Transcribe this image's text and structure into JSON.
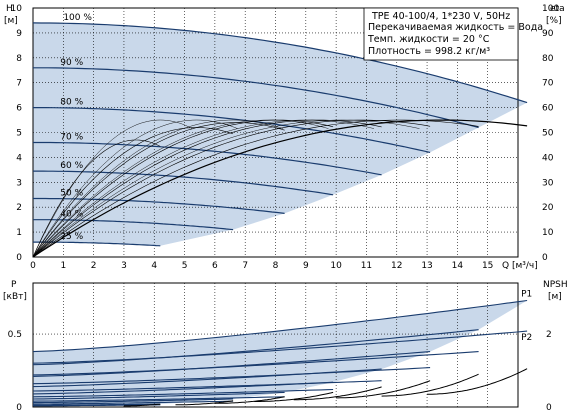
{
  "info": {
    "model": "TPE 40-100/4, 1*230 V, 50Hz",
    "line1": "Перекачиваемая жидкость = Вода",
    "line2": "Темп. жидкости = 20 °C",
    "line3": "Плотность = 998.2 кг/м³"
  },
  "colors": {
    "curve": "#1a3c6e",
    "region": "#c9d8ea",
    "grid": "#000000",
    "eta": "#000000",
    "npsh": "#000000"
  },
  "chart_data": [
    {
      "type": "line",
      "name": "head",
      "ylabel_left": "H\n[м]",
      "ylabel_right": "eta\n[%]",
      "xlabel": "Q [м³/ч]",
      "xlim": [
        0,
        16
      ],
      "ylim": [
        0,
        10
      ],
      "eta_lim": [
        0,
        100
      ],
      "x_ticks": [
        0,
        1,
        2,
        3,
        4,
        5,
        6,
        7,
        8,
        9,
        10,
        11,
        12,
        13,
        14,
        15
      ],
      "y_ticks": [
        0,
        1,
        2,
        3,
        4,
        5,
        6,
        7,
        8,
        9,
        10
      ],
      "eta_ticks": [
        0,
        10,
        20,
        30,
        40,
        50,
        60,
        70,
        80,
        90,
        100
      ],
      "speed_curves": [
        {
          "label": "100 %",
          "h0": 9.4,
          "qmax": 16.3,
          "hend": 6.2
        },
        {
          "label": "90 %",
          "h0": 7.6,
          "qmax": 14.7,
          "hend": 5.2
        },
        {
          "label": "80 %",
          "h0": 6.0,
          "qmax": 13.1,
          "hend": 4.2
        },
        {
          "label": "70 %",
          "h0": 4.6,
          "qmax": 11.5,
          "hend": 3.3
        },
        {
          "label": "60 %",
          "h0": 3.45,
          "qmax": 9.9,
          "hend": 2.5
        },
        {
          "label": "50 %",
          "h0": 2.35,
          "qmax": 8.3,
          "hend": 1.75
        },
        {
          "label": "40 %",
          "h0": 1.5,
          "qmax": 6.6,
          "hend": 1.1
        },
        {
          "label": "25 %",
          "h0": 0.6,
          "qmax": 4.2,
          "hend": 0.45
        }
      ],
      "eta_curves": [
        {
          "scale": 1.0,
          "peak": 55,
          "qpeak": 13.5,
          "qmax": 16.3
        },
        {
          "scale": 0.9,
          "peak": 55,
          "qpeak": 12.1,
          "qmax": 14.7
        },
        {
          "scale": 0.8,
          "peak": 55,
          "qpeak": 10.8,
          "qmax": 13.1
        },
        {
          "scale": 0.7,
          "peak": 55,
          "qpeak": 9.4,
          "qmax": 11.5
        },
        {
          "scale": 0.6,
          "peak": 55,
          "qpeak": 8.1,
          "qmax": 9.9
        },
        {
          "scale": 0.5,
          "peak": 54,
          "qpeak": 6.7,
          "qmax": 8.3
        },
        {
          "scale": 0.4,
          "peak": 52,
          "qpeak": 5.4,
          "qmax": 6.6
        },
        {
          "scale": 0.25,
          "peak": 47,
          "qpeak": 3.4,
          "qmax": 4.2
        }
      ]
    },
    {
      "type": "line",
      "name": "power",
      "ylabel_left": "P\n[кВт]",
      "ylabel_right": "NPSH\n[м]",
      "xlim": [
        0,
        16
      ],
      "ylim": [
        0,
        0.85
      ],
      "npsh_lim": [
        0,
        3.4
      ],
      "y_ticks": [
        0,
        0.5
      ],
      "npsh_ticks": [
        0,
        2
      ],
      "series_labels": [
        "P1",
        "P2"
      ],
      "p1_curves": [
        {
          "p0": 0.38,
          "qmax": 16.3,
          "pend": 0.73
        },
        {
          "p0": 0.29,
          "qmax": 14.7,
          "pend": 0.53
        },
        {
          "p0": 0.21,
          "qmax": 13.1,
          "pend": 0.38
        },
        {
          "p0": 0.14,
          "qmax": 11.5,
          "pend": 0.26
        },
        {
          "p0": 0.09,
          "qmax": 9.9,
          "pend": 0.17
        },
        {
          "p0": 0.055,
          "qmax": 8.3,
          "pend": 0.1
        },
        {
          "p0": 0.03,
          "qmax": 6.6,
          "pend": 0.055
        },
        {
          "p0": 0.012,
          "qmax": 4.2,
          "pend": 0.02
        }
      ],
      "p2_curves": [
        {
          "p0": 0.3,
          "qmax": 16.3,
          "pend": 0.52
        },
        {
          "p0": 0.22,
          "qmax": 14.7,
          "pend": 0.38
        },
        {
          "p0": 0.16,
          "qmax": 13.1,
          "pend": 0.27
        },
        {
          "p0": 0.11,
          "qmax": 11.5,
          "pend": 0.18
        },
        {
          "p0": 0.07,
          "qmax": 9.9,
          "pend": 0.12
        },
        {
          "p0": 0.04,
          "qmax": 8.3,
          "pend": 0.07
        },
        {
          "p0": 0.02,
          "qmax": 6.6,
          "pend": 0.04
        },
        {
          "p0": 0.008,
          "qmax": 4.2,
          "pend": 0.015
        }
      ],
      "npsh_curves": [
        {
          "q0": 13.0,
          "n0": 0.35,
          "qmax": 16.3,
          "nend": 1.05
        },
        {
          "q0": 11.5,
          "n0": 0.3,
          "qmax": 14.7,
          "nend": 0.9
        },
        {
          "q0": 10.0,
          "n0": 0.25,
          "qmax": 13.1,
          "nend": 0.72
        },
        {
          "q0": 8.6,
          "n0": 0.2,
          "qmax": 11.5,
          "nend": 0.55
        },
        {
          "q0": 7.3,
          "n0": 0.15,
          "qmax": 9.9,
          "nend": 0.4
        },
        {
          "q0": 6.0,
          "n0": 0.1,
          "qmax": 8.3,
          "nend": 0.28
        },
        {
          "q0": 4.7,
          "n0": 0.06,
          "qmax": 6.6,
          "nend": 0.17
        },
        {
          "q0": 3.0,
          "n0": 0.03,
          "qmax": 4.2,
          "nend": 0.08
        }
      ]
    }
  ]
}
